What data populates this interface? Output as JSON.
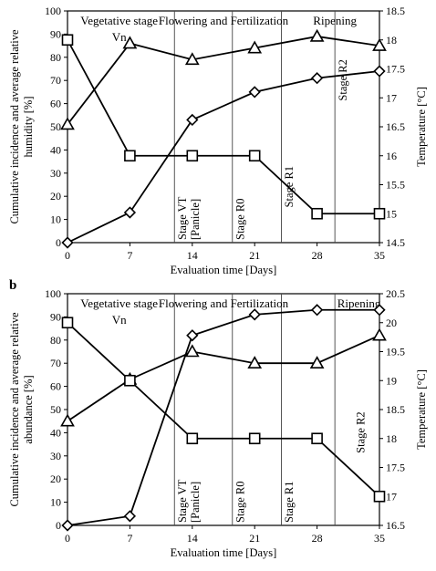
{
  "chart_data": [
    {
      "panel_label": "",
      "type": "line",
      "xlabel": "Evaluation time [Days]",
      "ylabel": "Cumulative incidence and average relative humidity [%]",
      "ylabel_lines": [
        "Cumulative incidence and average relative",
        "humidity [%]"
      ],
      "y2label": "Temperature [°C]",
      "x": [
        0,
        7,
        14,
        21,
        28,
        35
      ],
      "xlim": [
        0,
        35
      ],
      "ylim": [
        0,
        100
      ],
      "y2lim": [
        14.5,
        18.5
      ],
      "xticks": [
        "0",
        "7",
        "14",
        "21",
        "28",
        "35"
      ],
      "yticks": [
        "0",
        "10",
        "20",
        "30",
        "40",
        "50",
        "60",
        "70",
        "80",
        "90",
        "100"
      ],
      "y2ticks": [
        "14.5",
        "15",
        "15.5",
        "16",
        "16.5",
        "17",
        "17.5",
        "18",
        "18.5"
      ],
      "series": [
        {
          "marker": "diamond",
          "axis": "left",
          "values": [
            0,
            13,
            53,
            65,
            71,
            74
          ]
        },
        {
          "marker": "triangle",
          "axis": "left",
          "values": [
            51,
            86,
            79,
            84,
            89,
            85
          ]
        },
        {
          "marker": "square",
          "axis": "right",
          "values": [
            18,
            16,
            16,
            16,
            15,
            15
          ]
        }
      ],
      "stage_lines_x": [
        12,
        18.5,
        24,
        30
      ],
      "stage_headers": [
        {
          "text": "Vegetative stage",
          "x": 5.8,
          "row": 1
        },
        {
          "text": "Vn",
          "x": 5.8,
          "row": 2
        },
        {
          "text": "Flowering and Fertilization",
          "x": 17.5,
          "row": 1
        },
        {
          "text": "Ripening",
          "x": 30,
          "row": 1
        }
      ],
      "stage_labels": [
        {
          "lines": [
            "Stage VT",
            "[Panicle]"
          ],
          "x": 13.3,
          "y": 0
        },
        {
          "lines": [
            "Stage R0"
          ],
          "x": 19.8,
          "y": 0
        },
        {
          "lines": [
            "Stage R1"
          ],
          "x": 25.3,
          "y": 14
        },
        {
          "lines": [
            "Stage R2"
          ],
          "x": 31.3,
          "y": 60
        }
      ]
    },
    {
      "panel_label": "b",
      "type": "line",
      "xlabel": "Evaluation time [Days]",
      "ylabel": "Cumulative incidence and average relative abundance [%]",
      "ylabel_lines": [
        "Cumulative incidence and average relative",
        "abundance [%]"
      ],
      "y2label": "Temperature [°C]",
      "x": [
        0,
        7,
        14,
        21,
        28,
        35
      ],
      "xlim": [
        0,
        35
      ],
      "ylim": [
        0,
        100
      ],
      "y2lim": [
        16.5,
        20.5
      ],
      "xticks": [
        "0",
        "7",
        "14",
        "21",
        "28",
        "35"
      ],
      "yticks": [
        "0",
        "10",
        "20",
        "30",
        "40",
        "50",
        "60",
        "70",
        "80",
        "90",
        "100"
      ],
      "y2ticks": [
        "16.5",
        "17",
        "17.5",
        "18",
        "18.5",
        "19",
        "19.5",
        "20",
        "20.5"
      ],
      "series": [
        {
          "marker": "diamond",
          "axis": "left",
          "values": [
            0,
            4,
            82,
            91,
            93,
            93
          ]
        },
        {
          "marker": "triangle",
          "axis": "left",
          "values": [
            45,
            63,
            75,
            70,
            70,
            82
          ]
        },
        {
          "marker": "square",
          "axis": "right",
          "values": [
            20,
            19,
            18,
            18,
            18,
            17
          ]
        }
      ],
      "stage_lines_x": [
        12,
        18.5,
        24,
        30
      ],
      "stage_headers": [
        {
          "text": "Vegetative stage",
          "x": 5.8,
          "row": 1
        },
        {
          "text": "Vn",
          "x": 5.8,
          "row": 2
        },
        {
          "text": "Flowering and Fertilization",
          "x": 17.5,
          "row": 1
        },
        {
          "text": "Ripening",
          "x": 32.7,
          "row": 1
        }
      ],
      "stage_labels": [
        {
          "lines": [
            "Stage VT",
            "[Panicle]"
          ],
          "x": 13.3,
          "y": 0
        },
        {
          "lines": [
            "Stage R0"
          ],
          "x": 19.8,
          "y": 0
        },
        {
          "lines": [
            "Stage R1"
          ],
          "x": 25.3,
          "y": 0
        },
        {
          "lines": [
            "Stage R2"
          ],
          "x": 33.3,
          "y": 30
        }
      ]
    }
  ]
}
